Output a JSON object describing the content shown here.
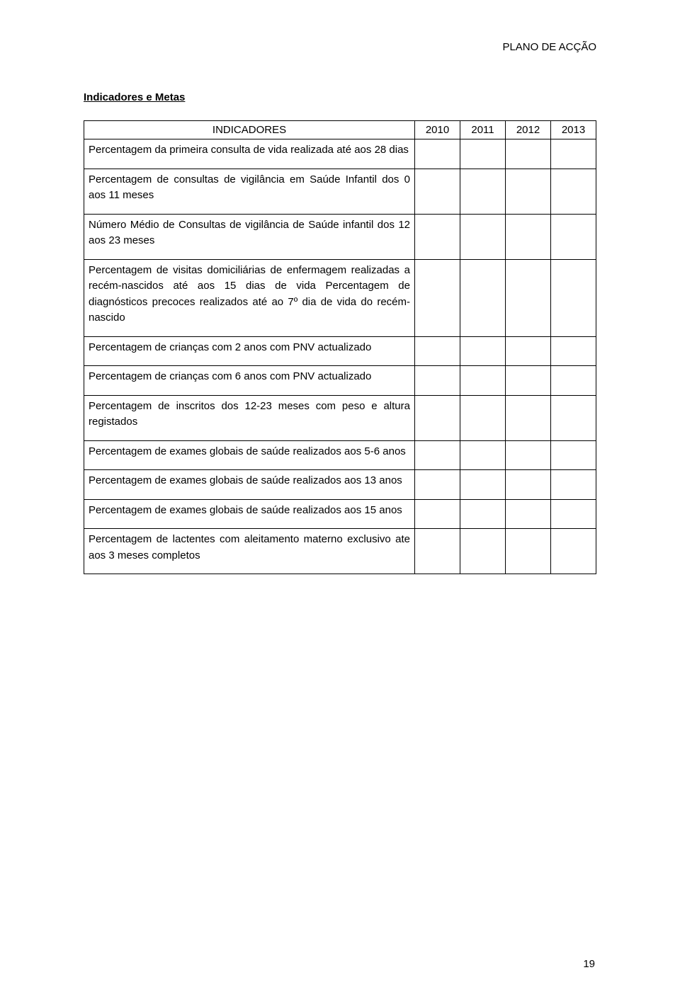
{
  "header": {
    "doc_title": "PLANO DE ACÇÃO"
  },
  "section_title": "Indicadores e Metas",
  "table": {
    "columns": [
      "INDICADORES",
      "2010",
      "2011",
      "2012",
      "2013"
    ],
    "rows": [
      "Percentagem da primeira consulta de vida realizada até aos 28 dias",
      "Percentagem de consultas de vigilância em Saúde Infantil dos 0 aos 11 meses",
      "Número Médio de Consultas de vigilância de Saúde infantil dos 12 aos 23 meses",
      "Percentagem de visitas domiciliárias de enfermagem realizadas a recém-nascidos até aos 15 dias de vida\nPercentagem de diagnósticos precoces realizados até ao 7º dia de vida do recém-nascido",
      "Percentagem de crianças com 2 anos com PNV actualizado",
      "Percentagem de crianças com 6 anos com PNV actualizado",
      "Percentagem de inscritos dos 12-23 meses com peso e altura registados",
      "Percentagem de exames globais de saúde realizados aos 5-6 anos",
      "Percentagem de exames globais de saúde realizados aos 13 anos",
      "Percentagem de exames globais de saúde realizados aos 15 anos",
      "Percentagem de lactentes com aleitamento materno exclusivo ate aos 3 meses completos"
    ]
  },
  "page_number": "19",
  "colors": {
    "text": "#000000",
    "background": "#ffffff",
    "border": "#000000"
  }
}
